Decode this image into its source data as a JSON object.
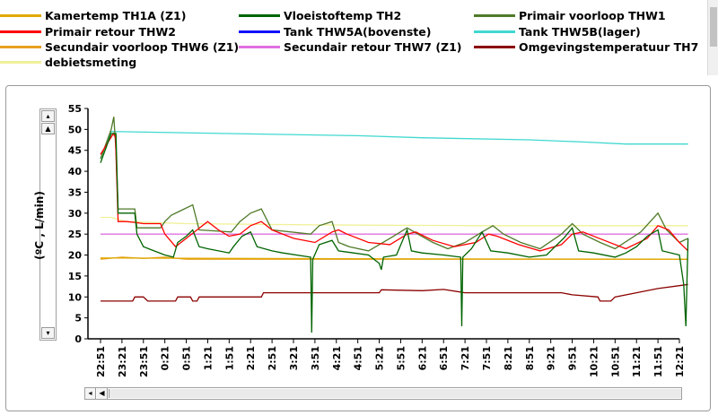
{
  "legend": {
    "items": [
      {
        "label": "Kamertemp  TH1A (Z1)",
        "color": "#e0a800"
      },
      {
        "label": "Vloeistoftemp TH2",
        "color": "#006400"
      },
      {
        "label": "Primair voorloop THW1",
        "color": "#4f7a28"
      },
      {
        "label": "Primair retour THW2",
        "color": "#ff0000"
      },
      {
        "label": "Tank THW5A(bovenste)",
        "color": "#1010ff"
      },
      {
        "label": "Tank THW5B(lager)",
        "color": "#40d8d0"
      },
      {
        "label": "Secundair voorloop THW6 (Z1)",
        "color": "#e8a020"
      },
      {
        "label": "Secundair retour THW7 (Z1)",
        "color": "#e070e0"
      },
      {
        "label": "Omgevingstemperatuur TH7",
        "color": "#8b0000"
      },
      {
        "label": "debietsmeting",
        "color": "#f0f098"
      }
    ]
  },
  "scrollbars": {
    "up_arrow": "▴",
    "up_step": "▲",
    "down_arrow": "▾",
    "left_arrow": "◂",
    "left_step": "◀"
  },
  "chart_data": {
    "type": "line",
    "title": "",
    "xlabel": "",
    "ylabel": "(ºC , L/min)",
    "ylim": [
      0,
      55
    ],
    "yticks": [
      0,
      5,
      10,
      15,
      20,
      25,
      30,
      35,
      40,
      45,
      50,
      55
    ],
    "x_tick_labels": [
      "22:51",
      "23:21",
      "23:51",
      "0:21",
      "0:51",
      "1:21",
      "1:51",
      "2:21",
      "2:51",
      "3:21",
      "3:51",
      "4:21",
      "4:51",
      "5:21",
      "5:51",
      "6:21",
      "6:51",
      "7:21",
      "7:51",
      "8:21",
      "8:51",
      "9:21",
      "9:51",
      "10:21",
      "10:51",
      "11:21",
      "11:51",
      "12:21"
    ],
    "grid": false,
    "legend_position": "top",
    "series": [
      {
        "name": "Tank THW5B(lager)",
        "color": "#40d8d0",
        "points": [
          [
            0,
            43
          ],
          [
            0.5,
            49.5
          ],
          [
            6,
            49
          ],
          [
            12,
            48.5
          ],
          [
            15,
            48
          ],
          [
            20,
            47.5
          ],
          [
            22.5,
            47
          ],
          [
            24.5,
            46.5
          ],
          [
            27.4,
            46.5
          ]
        ]
      },
      {
        "name": "debietsmeting",
        "color": "#f0f098",
        "points": [
          [
            0,
            29
          ],
          [
            0.5,
            29
          ],
          [
            1.2,
            28
          ],
          [
            4,
            27.5
          ],
          [
            10,
            27.2
          ],
          [
            18,
            27
          ],
          [
            27.4,
            27
          ]
        ]
      },
      {
        "name": "Secundair retour THW7 (Z1)",
        "color": "#e070e0",
        "points": [
          [
            0,
            25
          ],
          [
            27.4,
            25
          ]
        ]
      },
      {
        "name": "Secundair voorloop THW6 (Z1)",
        "color": "#e8a020",
        "points": [
          [
            0,
            19
          ],
          [
            1,
            19.5
          ],
          [
            2,
            19.2
          ],
          [
            3,
            19.5
          ],
          [
            4,
            19
          ],
          [
            8,
            19
          ],
          [
            14,
            19
          ],
          [
            20,
            19
          ],
          [
            27.4,
            19
          ]
        ]
      },
      {
        "name": "Kamertemp  TH1A (Z1)",
        "color": "#e0a800",
        "points": [
          [
            0,
            19.3
          ],
          [
            6,
            19.2
          ],
          [
            14,
            19.1
          ],
          [
            27.4,
            19
          ]
        ]
      },
      {
        "name": "Omgevingstemperatuur TH7",
        "color": "#8b0000",
        "points": [
          [
            0,
            9
          ],
          [
            1.5,
            9
          ],
          [
            1.6,
            10
          ],
          [
            2,
            10
          ],
          [
            2.2,
            9
          ],
          [
            3.5,
            9
          ],
          [
            3.6,
            10
          ],
          [
            4.2,
            10
          ],
          [
            4.3,
            9
          ],
          [
            4.5,
            9
          ],
          [
            4.6,
            10
          ],
          [
            7.5,
            10
          ],
          [
            7.6,
            11
          ],
          [
            13,
            11
          ],
          [
            13.1,
            11.7
          ],
          [
            15,
            11.5
          ],
          [
            16,
            11.8
          ],
          [
            17,
            11
          ],
          [
            21.5,
            11
          ],
          [
            22,
            10.5
          ],
          [
            23.2,
            10
          ],
          [
            23.3,
            9
          ],
          [
            23.8,
            9
          ],
          [
            24,
            10
          ],
          [
            25,
            11
          ],
          [
            26,
            12
          ],
          [
            27,
            12.7
          ],
          [
            27.4,
            13
          ]
        ]
      },
      {
        "name": "Primair voorloop THW1",
        "color": "#4f7a28",
        "points": [
          [
            0,
            43
          ],
          [
            0.5,
            50
          ],
          [
            0.62,
            53
          ],
          [
            0.72,
            45
          ],
          [
            0.82,
            31
          ],
          [
            1.3,
            31
          ],
          [
            1.6,
            31
          ],
          [
            1.7,
            26.5
          ],
          [
            2.8,
            26.5
          ],
          [
            3,
            28
          ],
          [
            3.3,
            29.5
          ],
          [
            3.7,
            30.5
          ],
          [
            4.3,
            32
          ],
          [
            4.6,
            26
          ],
          [
            6.1,
            25.5
          ],
          [
            6.5,
            28
          ],
          [
            7,
            30
          ],
          [
            7.5,
            31
          ],
          [
            8,
            26
          ],
          [
            9.8,
            25
          ],
          [
            10.2,
            27
          ],
          [
            10.8,
            28
          ],
          [
            11.1,
            23
          ],
          [
            11.6,
            22
          ],
          [
            12.5,
            21
          ],
          [
            13.5,
            24
          ],
          [
            14.3,
            26.5
          ],
          [
            14.8,
            25
          ],
          [
            15.5,
            23
          ],
          [
            16.2,
            21.5
          ],
          [
            17,
            23
          ],
          [
            17.8,
            25.5
          ],
          [
            18.3,
            27
          ],
          [
            18.8,
            25
          ],
          [
            19.6,
            23
          ],
          [
            20.5,
            21.5
          ],
          [
            21.5,
            25
          ],
          [
            22,
            27.5
          ],
          [
            22.5,
            25
          ],
          [
            23.3,
            23
          ],
          [
            24,
            21.5
          ],
          [
            25.2,
            25.5
          ],
          [
            26,
            30
          ],
          [
            26.4,
            26
          ],
          [
            27,
            23
          ],
          [
            27.4,
            24
          ]
        ]
      },
      {
        "name": "Primair retour THW2",
        "color": "#ff0000",
        "points": [
          [
            0,
            44
          ],
          [
            0.6,
            49
          ],
          [
            0.7,
            48
          ],
          [
            0.82,
            28
          ],
          [
            1.2,
            28
          ],
          [
            1.6,
            27.8
          ],
          [
            2,
            27.5
          ],
          [
            2.8,
            27.5
          ],
          [
            3,
            25
          ],
          [
            3.5,
            22
          ],
          [
            4,
            24
          ],
          [
            4.5,
            26
          ],
          [
            5,
            28
          ],
          [
            5.5,
            26
          ],
          [
            6,
            24.5
          ],
          [
            6.5,
            25
          ],
          [
            7,
            27
          ],
          [
            7.5,
            28
          ],
          [
            8,
            26
          ],
          [
            9,
            24
          ],
          [
            10,
            23
          ],
          [
            10.8,
            25.5
          ],
          [
            11.1,
            26
          ],
          [
            11.5,
            25
          ],
          [
            12.5,
            23
          ],
          [
            13.5,
            22.5
          ],
          [
            14.3,
            25
          ],
          [
            14.7,
            25.5
          ],
          [
            15.5,
            23.5
          ],
          [
            16.5,
            22
          ],
          [
            17.5,
            23
          ],
          [
            18.1,
            25
          ],
          [
            18.5,
            24.5
          ],
          [
            19.5,
            22.5
          ],
          [
            20.5,
            21
          ],
          [
            21.5,
            22.5
          ],
          [
            22,
            25
          ],
          [
            22.5,
            25.5
          ],
          [
            23.5,
            23.5
          ],
          [
            24.5,
            21.5
          ],
          [
            25.5,
            24
          ],
          [
            26,
            27
          ],
          [
            26.5,
            26
          ],
          [
            27,
            23
          ],
          [
            27.4,
            21
          ]
        ]
      },
      {
        "name": "Vloeistoftemp TH2",
        "color": "#006400",
        "points": [
          [
            0,
            42
          ],
          [
            0.5,
            49
          ],
          [
            0.72,
            49
          ],
          [
            0.82,
            30
          ],
          [
            1.6,
            30
          ],
          [
            1.7,
            25
          ],
          [
            2,
            22
          ],
          [
            2.5,
            21
          ],
          [
            3,
            20
          ],
          [
            3.4,
            19.5
          ],
          [
            3.6,
            23
          ],
          [
            4,
            24.5
          ],
          [
            4.3,
            26
          ],
          [
            4.6,
            22
          ],
          [
            5,
            21.5
          ],
          [
            6,
            20.5
          ],
          [
            6.2,
            22
          ],
          [
            6.6,
            24.5
          ],
          [
            7,
            25.5
          ],
          [
            7.3,
            22
          ],
          [
            8,
            21
          ],
          [
            8.5,
            20.5
          ],
          [
            9.8,
            19.5
          ],
          [
            9.85,
            1.5
          ],
          [
            9.9,
            19
          ],
          [
            10.2,
            22.5
          ],
          [
            10.8,
            23.5
          ],
          [
            11.1,
            21
          ],
          [
            11.8,
            20.5
          ],
          [
            12.5,
            20
          ],
          [
            13,
            18
          ],
          [
            13.1,
            16.5
          ],
          [
            13.2,
            19.5
          ],
          [
            13.8,
            20
          ],
          [
            14.3,
            26
          ],
          [
            14.5,
            21
          ],
          [
            15,
            20.5
          ],
          [
            16,
            20
          ],
          [
            16.8,
            19.5
          ],
          [
            16.85,
            3
          ],
          [
            16.9,
            19.5
          ],
          [
            17.3,
            21.5
          ],
          [
            17.8,
            25.5
          ],
          [
            18.2,
            21
          ],
          [
            19,
            20.5
          ],
          [
            20,
            19.5
          ],
          [
            20.8,
            20
          ],
          [
            21.2,
            22
          ],
          [
            21.6,
            24
          ],
          [
            22,
            26.5
          ],
          [
            22.3,
            21
          ],
          [
            23,
            20.5
          ],
          [
            24,
            19.5
          ],
          [
            24.5,
            20.5
          ],
          [
            25,
            22
          ],
          [
            25.5,
            24.5
          ],
          [
            26,
            26
          ],
          [
            26.2,
            21
          ],
          [
            27,
            20
          ],
          [
            27.2,
            13
          ],
          [
            27.3,
            3
          ],
          [
            27.4,
            24
          ]
        ]
      }
    ]
  }
}
